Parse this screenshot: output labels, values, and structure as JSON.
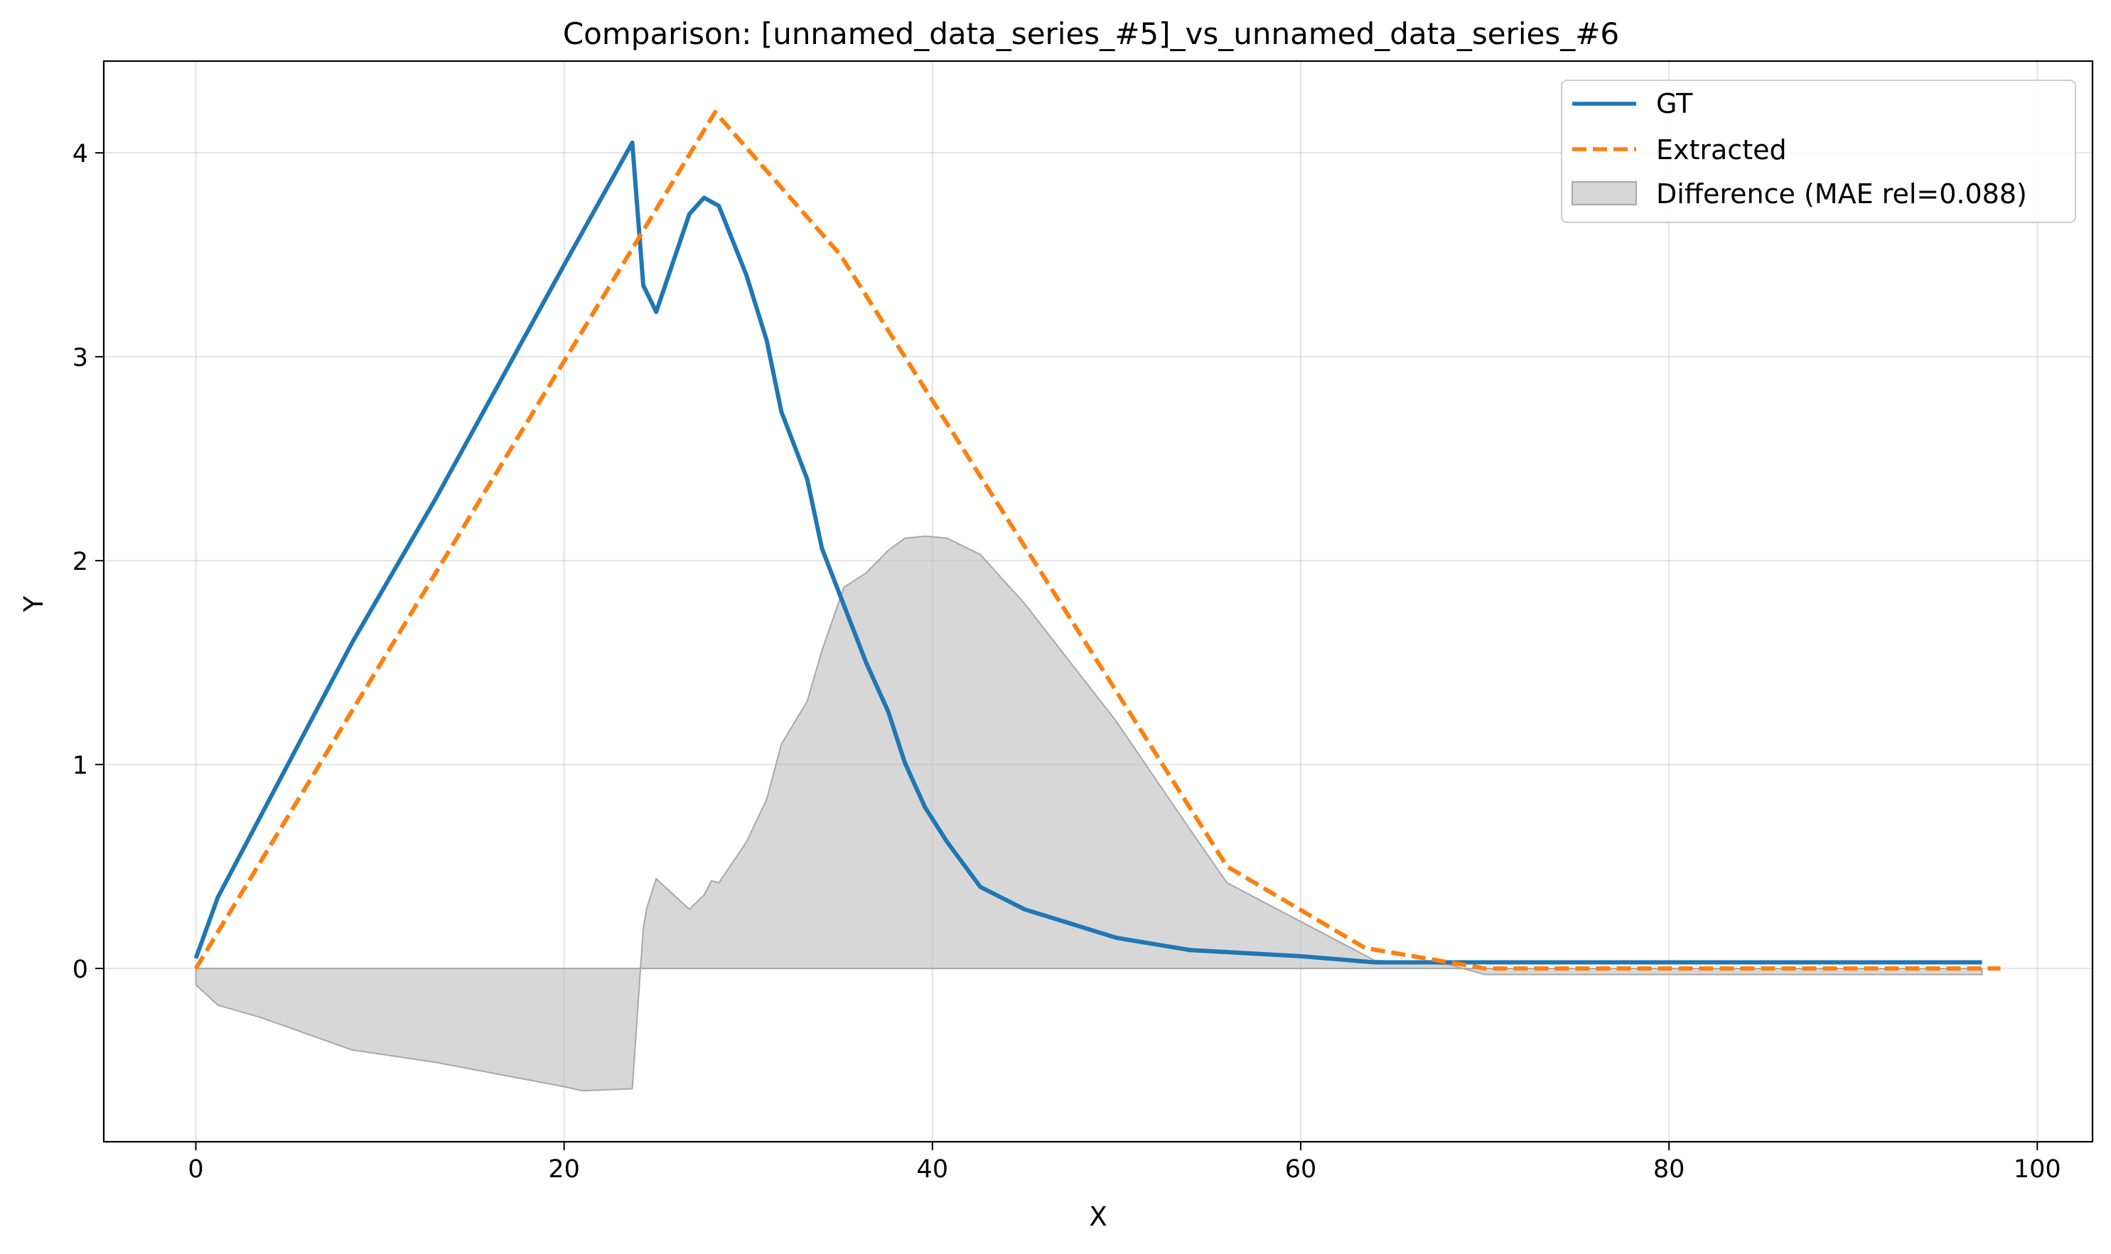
{
  "chart_data": {
    "type": "line",
    "title": "Comparison: [unnamed_data_series_#5]_vs_unnamed_data_series_#6",
    "xlabel": "X",
    "ylabel": "Y",
    "xlim": [
      -5,
      103
    ],
    "ylim": [
      -0.85,
      4.45
    ],
    "xticks": [
      0,
      20,
      40,
      60,
      80,
      100
    ],
    "yticks": [
      0,
      1,
      2,
      3,
      4
    ],
    "grid": true,
    "legend_position": "top-right",
    "series": [
      {
        "name": "GT",
        "color": "#1f77b4",
        "style": "solid",
        "x": [
          0,
          1.2,
          8.5,
          13,
          20,
          23.7,
          24.3,
          25,
          26.8,
          27.6,
          28.4,
          29.9,
          31,
          31.8,
          33.2,
          34,
          35.2,
          36.4,
          37.6,
          38.5,
          39.6,
          40.8,
          42.6,
          45,
          50,
          54,
          60,
          64,
          70,
          80,
          97
        ],
        "y": [
          0.05,
          0.35,
          1.6,
          2.3,
          3.45,
          4.05,
          3.35,
          3.22,
          3.7,
          3.78,
          3.74,
          3.4,
          3.08,
          2.73,
          2.4,
          2.06,
          1.78,
          1.5,
          1.26,
          1.01,
          0.79,
          0.62,
          0.4,
          0.29,
          0.15,
          0.09,
          0.06,
          0.03,
          0.03,
          0.03,
          0.03
        ]
      },
      {
        "name": "Extracted",
        "color": "#ff7f0e",
        "style": "dashed",
        "x": [
          0,
          28.2,
          35,
          56,
          63.5,
          70,
          98
        ],
        "y": [
          0,
          4.2,
          3.5,
          0.5,
          0.1,
          0,
          0
        ]
      }
    ],
    "difference": {
      "name": "Difference (MAE rel=0.088)",
      "color": "#bfbfbf",
      "x": [
        0,
        1.2,
        3.5,
        8.5,
        13,
        20,
        21,
        23.7,
        24.3,
        24.5,
        25,
        26.8,
        27.6,
        28,
        28.4,
        29.9,
        31,
        31.8,
        33.2,
        34,
        35.2,
        36.4,
        37.6,
        38.5,
        39.6,
        40.8,
        42.6,
        45,
        50,
        54,
        56,
        60,
        64,
        68,
        70,
        80,
        97
      ],
      "y": [
        -0.08,
        -0.18,
        -0.24,
        -0.4,
        -0.46,
        -0.58,
        -0.6,
        -0.59,
        0.2,
        0.3,
        0.44,
        0.29,
        0.36,
        0.43,
        0.42,
        0.62,
        0.83,
        1.1,
        1.31,
        1.56,
        1.87,
        1.94,
        2.05,
        2.11,
        2.12,
        2.11,
        2.03,
        1.79,
        1.21,
        0.68,
        0.42,
        0.23,
        0.04,
        0.02,
        -0.03,
        -0.03,
        -0.03
      ]
    }
  }
}
